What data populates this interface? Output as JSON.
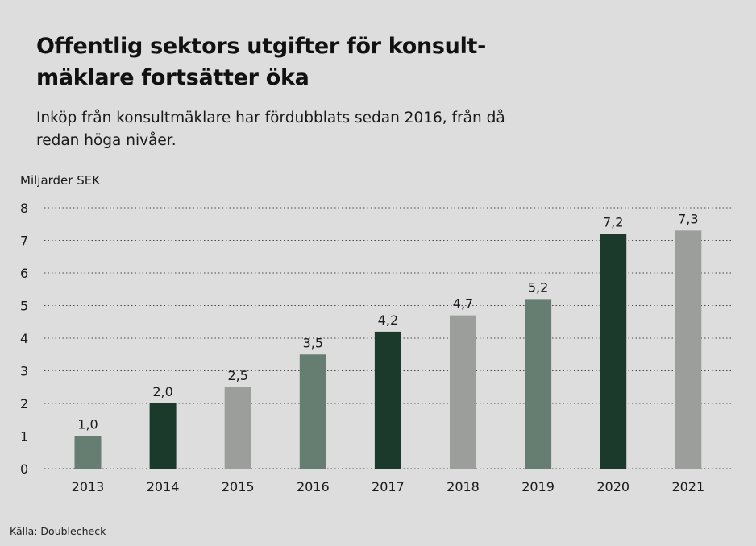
{
  "title": "Offentlig sektors utgifter för konsult-mäklare fortsätter öka",
  "subtitle": "Inköp från konsultmäklare har fördubblats sedan 2016, från då redan höga nivåer.",
  "unit_label": "Miljarder SEK",
  "source": "Källa: Doublecheck",
  "chart_data": {
    "type": "bar",
    "categories": [
      "2013",
      "2014",
      "2015",
      "2016",
      "2017",
      "2018",
      "2019",
      "2020",
      "2021"
    ],
    "values": [
      1.0,
      2.0,
      2.5,
      3.5,
      4.2,
      4.7,
      5.2,
      7.2,
      7.3
    ],
    "value_labels": [
      "1,0",
      "2,0",
      "2,5",
      "3,5",
      "4,2",
      "4,7",
      "5,2",
      "7,2",
      "7,3"
    ],
    "bar_colors": [
      "#657e71",
      "#1b3a2b",
      "#9b9e9b",
      "#657e71",
      "#1b3a2b",
      "#9b9e9b",
      "#657e71",
      "#1b3a2b",
      "#9b9e9b"
    ],
    "title": "Offentlig sektors utgifter för konsult-mäklare fortsätter öka",
    "xlabel": "",
    "ylabel": "Miljarder SEK",
    "ylim": [
      0,
      8
    ],
    "yticks": [
      "0",
      "1",
      "2",
      "3",
      "4",
      "5",
      "6",
      "7",
      "8"
    ],
    "grid": true,
    "grid_style": "dotted"
  }
}
